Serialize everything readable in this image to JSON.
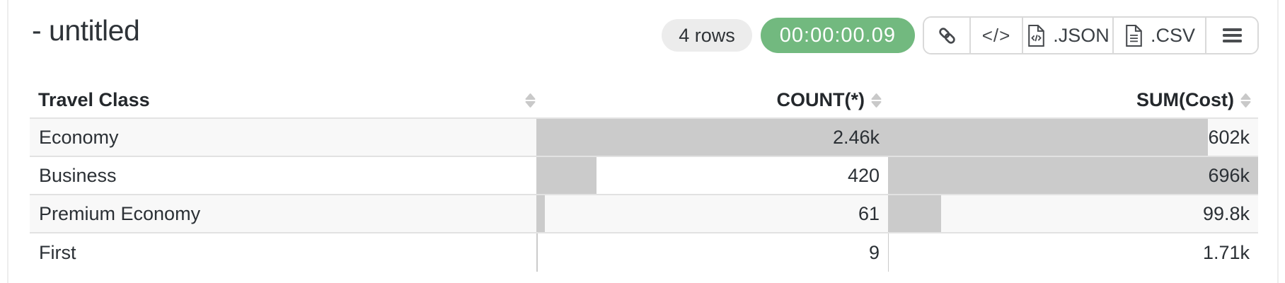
{
  "header": {
    "title": "- untitled",
    "rows_badge": "4 rows",
    "timer_badge": "00:00:00.09",
    "timer_color": "#72b97f",
    "toolbar": {
      "code_glyph": "</>",
      "json_label": ".JSON",
      "csv_label": ".CSV"
    }
  },
  "table": {
    "columns": [
      {
        "key": "class",
        "label": "Travel Class",
        "align": "left"
      },
      {
        "key": "count",
        "label": "COUNT(*)",
        "align": "right"
      },
      {
        "key": "cost",
        "label": "SUM(Cost)",
        "align": "right"
      }
    ],
    "rows": [
      {
        "class": "Economy",
        "count": 2460,
        "count_display": "2.46k",
        "cost": 602000,
        "cost_display": "602k"
      },
      {
        "class": "Business",
        "count": 420,
        "count_display": "420",
        "cost": 696000,
        "cost_display": "696k"
      },
      {
        "class": "Premium Economy",
        "count": 61,
        "count_display": "61",
        "cost": 99800,
        "cost_display": "99.8k"
      },
      {
        "class": "First",
        "count": 9,
        "count_display": "9",
        "cost": 1710,
        "cost_display": "1.71k"
      }
    ],
    "bar_color": "#cbcbcb",
    "stripe_color": "#f8f8f8"
  },
  "chart_data": {
    "type": "table",
    "title": "- untitled",
    "categories": [
      "Economy",
      "Business",
      "Premium Economy",
      "First"
    ],
    "series": [
      {
        "name": "COUNT(*)",
        "values": [
          2460,
          420,
          61,
          9
        ]
      },
      {
        "name": "SUM(Cost)",
        "values": [
          602000,
          696000,
          99800,
          1710
        ]
      }
    ]
  }
}
